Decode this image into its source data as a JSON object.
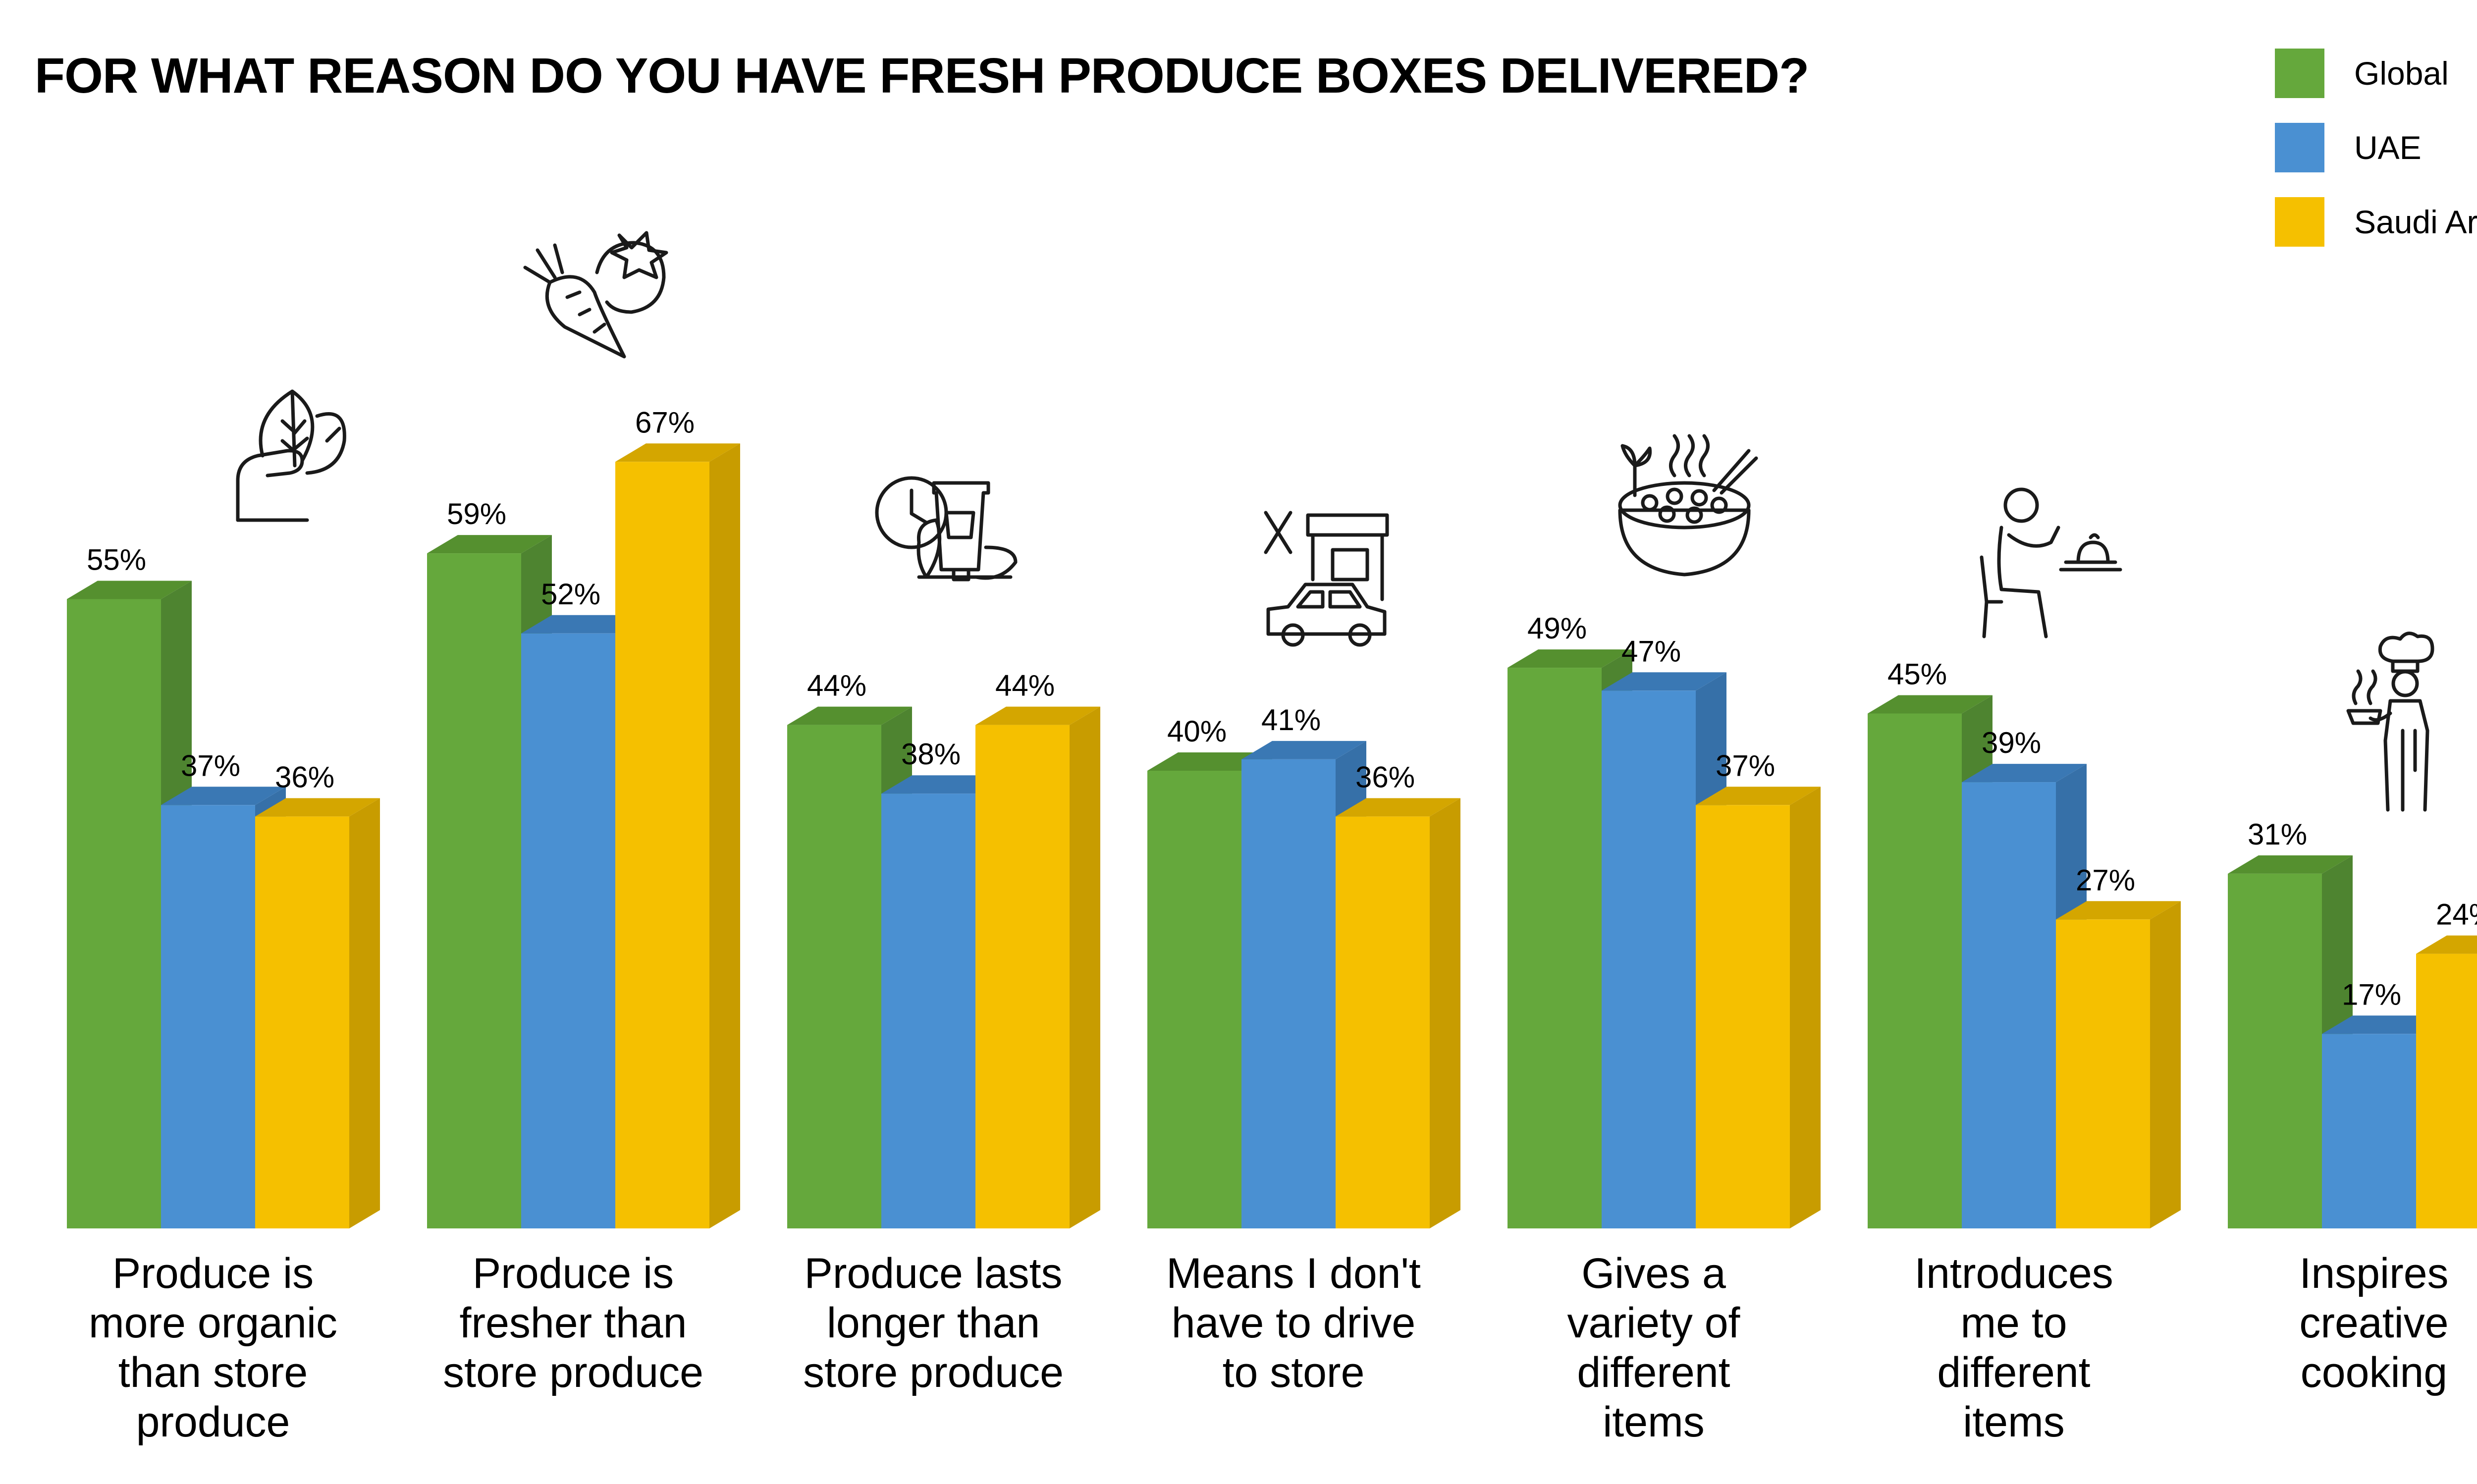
{
  "title": "FOR WHAT REASON DO YOU HAVE FRESH PRODUCE BOXES DELIVERED?",
  "colors": {
    "Global": {
      "front": "#65A83C",
      "side": "#4E8430",
      "top": "#55902F"
    },
    "UAE": {
      "front": "#4A90D2",
      "side": "#3670A8",
      "top": "#3A78B4"
    },
    "Saudi Arabia": {
      "front": "#F5C000",
      "side": "#C89C00",
      "top": "#D4A600"
    }
  },
  "chart_data": {
    "type": "bar",
    "categories": [
      [
        "Produce is",
        "more organic",
        "than store",
        "produce"
      ],
      [
        "Produce is",
        "fresher than",
        "store produce"
      ],
      [
        "Produce lasts",
        "longer than",
        "store produce"
      ],
      [
        "Means I don't",
        "have to drive",
        "to store"
      ],
      [
        "Gives a",
        "variety of",
        "different",
        "items"
      ],
      [
        "Introduces",
        "me to",
        "different",
        "items"
      ],
      [
        "Inspires",
        "creative",
        "cooking"
      ]
    ],
    "series": [
      {
        "name": "Global",
        "values": [
          55,
          59,
          44,
          40,
          49,
          45,
          31
        ]
      },
      {
        "name": "UAE",
        "values": [
          37,
          52,
          38,
          41,
          47,
          39,
          17
        ]
      },
      {
        "name": "Saudi Arabia",
        "values": [
          36,
          67,
          44,
          36,
          37,
          27,
          24
        ]
      }
    ],
    "value_suffix": "%",
    "ylim": [
      0,
      67
    ],
    "legend_position": "top-right",
    "grid": false,
    "icons": [
      "hand-leaf-icon",
      "vegetables-icon",
      "clock-lotion-icon",
      "car-store-icon",
      "food-bowl-icon",
      "person-dining-icon",
      "chef-icon"
    ]
  }
}
